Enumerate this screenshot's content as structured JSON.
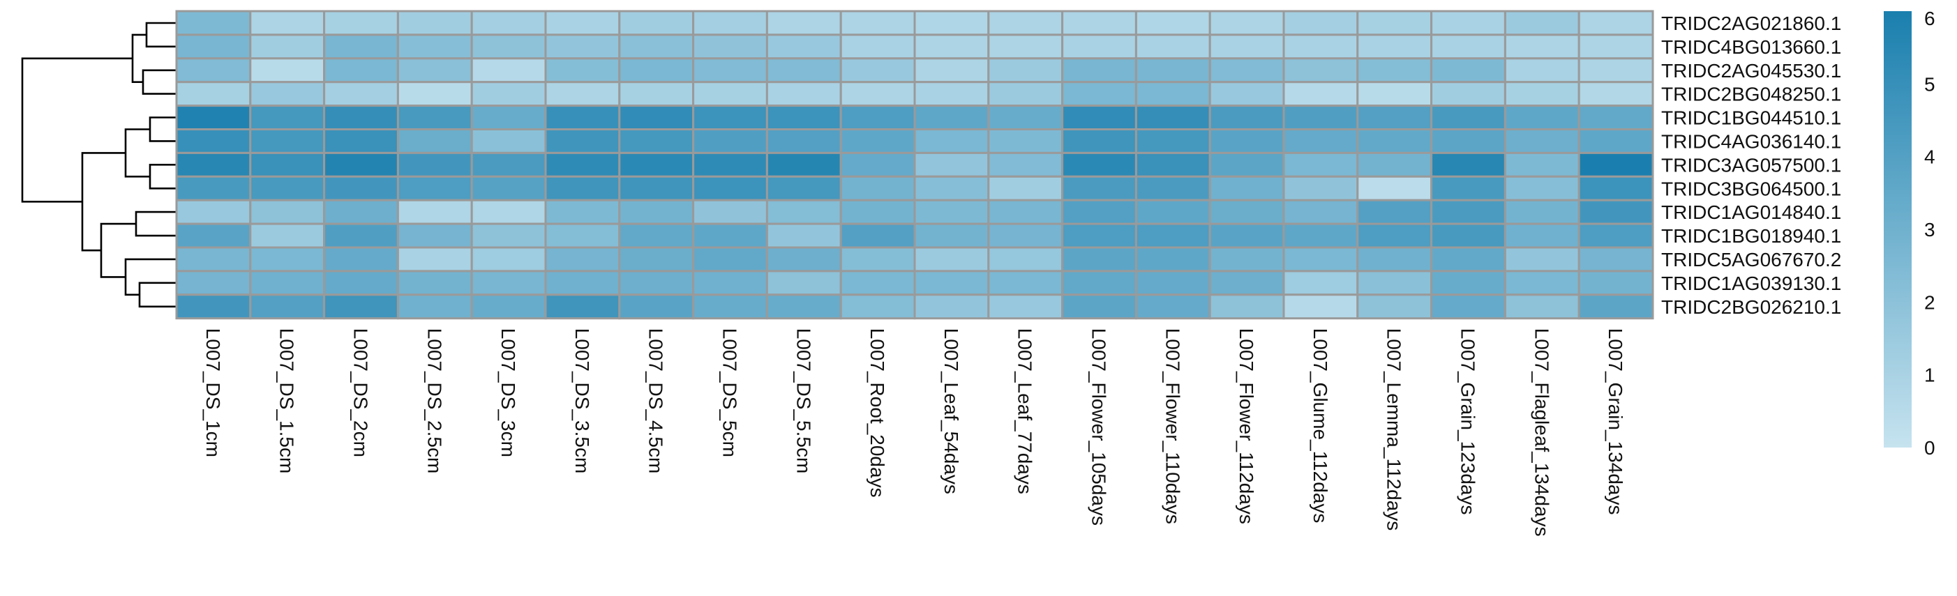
{
  "chart_data": {
    "type": "heatmap",
    "title": "",
    "rows": [
      "TRIDC2AG021860.1",
      "TRIDC4BG013660.1",
      "TRIDC2AG045530.1",
      "TRIDC2BG048250.1",
      "TRIDC1BG044510.1",
      "TRIDC4AG036140.1",
      "TRIDC3AG057500.1",
      "TRIDC3BG064500.1",
      "TRIDC1AG014840.1",
      "TRIDC1BG018940.1",
      "TRIDC5AG067670.2",
      "TRIDC1AG039130.1",
      "TRIDC2BG026210.1"
    ],
    "columns": [
      "L007_DS_1cm",
      "L007_DS_1.5cm",
      "L007_DS_2cm",
      "L007_DS_2.5cm",
      "L007_DS_3cm",
      "L007_DS_3.5cm",
      "L007_DS_4.5cm",
      "L007_DS_5cm",
      "L007_DS_5.5cm",
      "L007_Root_20days",
      "L007_Leaf_54days",
      "L007_Leaf_77days",
      "L007_Flower_105days",
      "L007_Flower_110days",
      "L007_Flower_112days",
      "L007_Glume_112days",
      "L007_Lemma_112days",
      "L007_Grain_123days",
      "L007_Flagleaf_134days",
      "L007_Grain_134days"
    ],
    "values": [
      [
        2.5,
        0.9,
        1.1,
        1.3,
        1.2,
        1.0,
        1.3,
        1.2,
        0.9,
        0.9,
        0.8,
        0.9,
        0.9,
        0.8,
        0.9,
        1.2,
        1.1,
        1.0,
        1.5,
        0.9
      ],
      [
        2.7,
        1.3,
        2.7,
        2.2,
        2.0,
        1.8,
        2.1,
        1.9,
        1.6,
        1.0,
        0.9,
        0.9,
        1.0,
        1.0,
        1.0,
        1.0,
        1.0,
        1.0,
        0.9,
        0.9
      ],
      [
        2.4,
        0.5,
        2.6,
        2.1,
        0.6,
        2.3,
        2.6,
        2.4,
        2.4,
        1.6,
        0.9,
        1.5,
        2.7,
        2.7,
        2.4,
        2.0,
        2.3,
        2.5,
        1.0,
        0.9
      ],
      [
        1.1,
        1.6,
        1.2,
        0.5,
        1.3,
        0.9,
        1.1,
        1.1,
        1.0,
        0.9,
        1.0,
        1.5,
        2.6,
        2.6,
        1.6,
        0.6,
        0.5,
        1.3,
        1.1,
        0.7
      ],
      [
        5.8,
        4.5,
        5.1,
        4.4,
        3.3,
        5.0,
        5.2,
        4.8,
        4.8,
        4.2,
        3.6,
        3.3,
        5.2,
        5.1,
        4.3,
        4.1,
        4.0,
        4.4,
        3.6,
        3.5
      ],
      [
        5.0,
        4.5,
        4.9,
        3.2,
        2.1,
        4.7,
        4.5,
        4.1,
        4.0,
        3.6,
        2.6,
        2.5,
        4.7,
        4.5,
        3.8,
        3.4,
        3.5,
        3.7,
        3.1,
        3.6
      ],
      [
        5.5,
        4.9,
        5.7,
        4.6,
        4.3,
        5.3,
        5.4,
        5.3,
        5.6,
        3.4,
        1.8,
        2.4,
        5.4,
        4.9,
        3.7,
        2.6,
        2.9,
        5.5,
        2.5,
        6.0
      ],
      [
        4.4,
        4.4,
        4.6,
        4.2,
        3.9,
        4.7,
        4.7,
        4.8,
        4.5,
        2.9,
        2.2,
        1.3,
        4.3,
        4.3,
        3.0,
        1.9,
        0.4,
        4.4,
        2.2,
        4.8
      ],
      [
        1.6,
        2.0,
        3.1,
        0.8,
        0.8,
        2.5,
        2.9,
        1.9,
        2.3,
        2.9,
        2.5,
        2.7,
        4.0,
        3.6,
        3.2,
        2.8,
        4.0,
        4.3,
        2.9,
        4.6
      ],
      [
        3.8,
        1.5,
        4.1,
        2.8,
        2.0,
        2.3,
        3.5,
        3.6,
        1.8,
        4.0,
        2.9,
        2.8,
        4.2,
        4.2,
        3.8,
        3.6,
        4.2,
        4.4,
        3.0,
        4.2
      ],
      [
        2.7,
        2.6,
        3.4,
        1.0,
        1.4,
        2.8,
        3.2,
        3.5,
        3.1,
        2.3,
        1.5,
        1.7,
        3.7,
        3.6,
        2.9,
        2.6,
        3.0,
        3.5,
        1.8,
        2.8
      ],
      [
        2.8,
        3.0,
        3.4,
        2.9,
        2.7,
        3.0,
        3.1,
        3.0,
        2.0,
        2.6,
        2.6,
        2.6,
        3.5,
        3.4,
        3.1,
        1.4,
        2.1,
        3.3,
        2.6,
        2.9
      ],
      [
        4.6,
        4.0,
        4.7,
        3.0,
        3.3,
        4.7,
        3.8,
        3.3,
        3.3,
        2.3,
        1.8,
        1.6,
        3.7,
        3.4,
        2.0,
        0.6,
        2.0,
        3.4,
        2.0,
        3.7
      ]
    ],
    "legend": {
      "min": 0,
      "max": 6,
      "ticks": [
        "0",
        "1",
        "2",
        "3",
        "4",
        "5",
        "6"
      ],
      "color_low": "#c6e3ef",
      "color_high": "#1a7fae",
      "placement": "right"
    },
    "dendrogram": {
      "side": "left"
    },
    "grid": true
  },
  "colors": {
    "cell_border": "#9a9a9a",
    "background": "#ffffff"
  }
}
